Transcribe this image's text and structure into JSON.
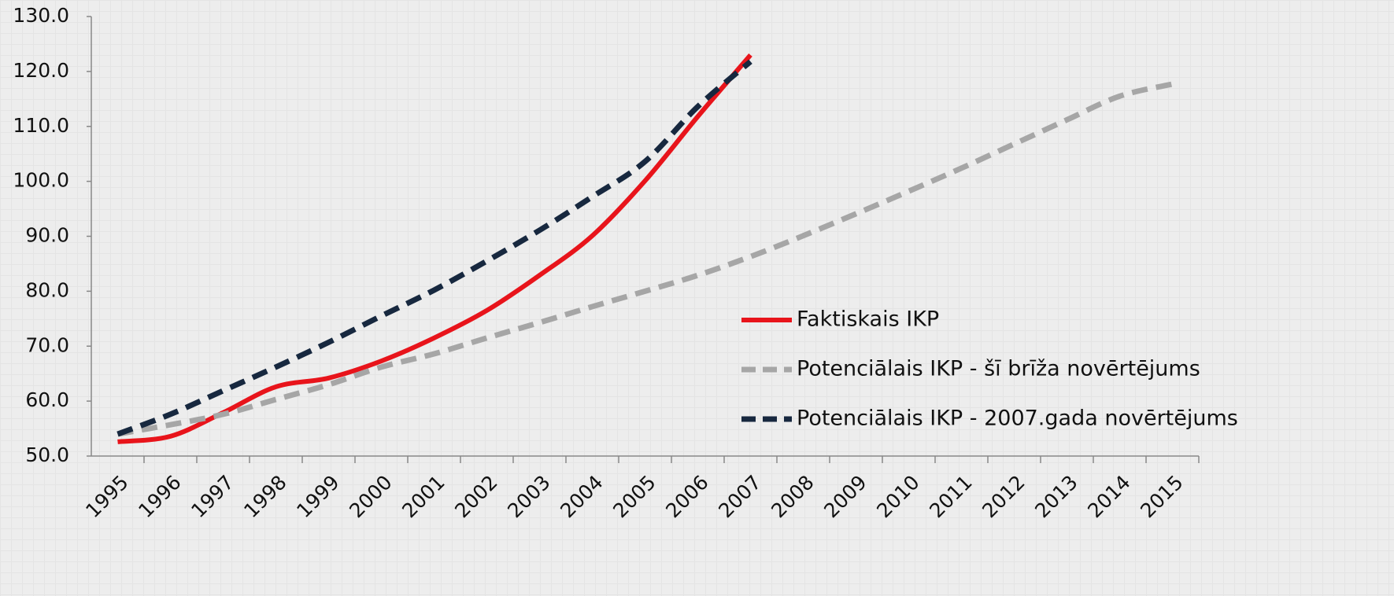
{
  "chart_data": {
    "type": "line",
    "categories": [
      "1995",
      "1996",
      "1997",
      "1998",
      "1999",
      "2000",
      "2001",
      "2002",
      "2003",
      "2004",
      "2005",
      "2006",
      "2007",
      "2008",
      "2009",
      "2010",
      "2011",
      "2012",
      "2013",
      "2014",
      "2015"
    ],
    "series": [
      {
        "name": "Faktiskais IKP",
        "color": "#e8141b",
        "style": "solid",
        "values": [
          52.6,
          53.6,
          57.9,
          62.6,
          64.2,
          67.3,
          71.5,
          76.5,
          82.9,
          90.1,
          100.1,
          111.8,
          123.0,
          null,
          null,
          null,
          null,
          null,
          null,
          null,
          null
        ]
      },
      {
        "name": "Potenciālais IKP - šī brīža novērtējums",
        "color": "#a6a6a6",
        "style": "dashed",
        "values": [
          54.0,
          55.7,
          57.6,
          60.3,
          63.0,
          66.2,
          68.6,
          71.5,
          74.3,
          77.2,
          80.0,
          82.9,
          86.3,
          90.1,
          94.1,
          98.2,
          102.4,
          106.8,
          111.2,
          115.5,
          117.7
        ]
      },
      {
        "name": "Potenciālais IKP - 2007.gada novērtējums",
        "color": "#17283f",
        "style": "dashed",
        "values": [
          54.0,
          57.6,
          61.9,
          66.2,
          70.7,
          75.5,
          80.2,
          85.5,
          91.1,
          97.2,
          103.6,
          113.6,
          121.8,
          null,
          null,
          null,
          null,
          null,
          null,
          null,
          null
        ]
      }
    ],
    "ylim": [
      50,
      130
    ],
    "yticks": [
      {
        "value": 50,
        "label": "50.0"
      },
      {
        "value": 60,
        "label": "60.0"
      },
      {
        "value": 70,
        "label": "70.0"
      },
      {
        "value": 80,
        "label": "80.0"
      },
      {
        "value": 90,
        "label": "90.0"
      },
      {
        "value": 100,
        "label": "100.0"
      },
      {
        "value": 110,
        "label": "110.0"
      },
      {
        "value": 120,
        "label": "120.0"
      },
      {
        "value": 130,
        "label": "130.0"
      }
    ],
    "grid": false
  }
}
